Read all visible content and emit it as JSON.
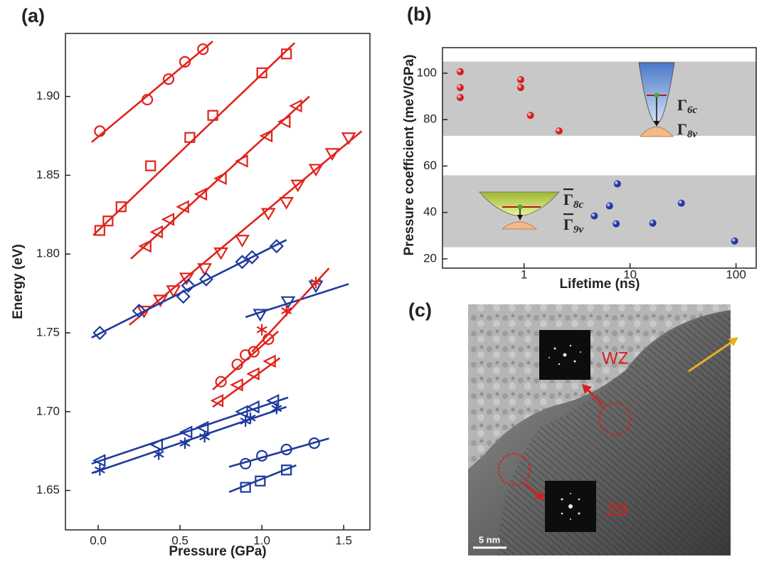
{
  "chart_data": [
    {
      "type": "scatter",
      "title": "(a)",
      "xlabel": "Pressure (GPa)",
      "ylabel": "Energy (eV)",
      "xlim": [
        -0.2,
        1.66
      ],
      "ylim": [
        1.625,
        1.94
      ],
      "xticks": [
        {
          "value": 0,
          "label": "0.0"
        },
        {
          "value": 0.5,
          "label": "0.5"
        },
        {
          "value": 1,
          "label": "1.0"
        },
        {
          "value": 1.5,
          "label": "1.5"
        }
      ],
      "yticks": [
        1.65,
        {
          "value": 1.7,
          "label": "1.70"
        },
        1.75,
        {
          "value": 1.8,
          "label": "1.80"
        },
        1.85,
        {
          "value": 1.9,
          "label": "1.90"
        }
      ],
      "series": [
        {
          "marker": "circle",
          "color": "#e0231c",
          "x": [
            0.01,
            0.3,
            0.43,
            0.53,
            0.64
          ],
          "values": [
            1.878,
            1.898,
            1.911,
            1.922,
            1.93
          ],
          "fit": {
            "x": [
              -0.04,
              0.7
            ],
            "values": [
              1.871,
              1.935
            ]
          }
        },
        {
          "marker": "square",
          "color": "#e0231c",
          "x": [
            0.01,
            0.06,
            0.14,
            0.32,
            0.56,
            0.7,
            1.0,
            1.15
          ],
          "values": [
            1.815,
            1.821,
            1.83,
            1.856,
            1.874,
            1.888,
            1.915,
            1.927
          ],
          "fit": {
            "x": [
              -0.03,
              1.2
            ],
            "values": [
              1.812,
              1.934
            ]
          }
        },
        {
          "marker": "triangle-left",
          "color": "#e0231c",
          "x": [
            0.29,
            0.36,
            0.43,
            0.52,
            0.63,
            0.75,
            0.88,
            1.03,
            1.14,
            1.21
          ],
          "values": [
            1.805,
            1.814,
            1.822,
            1.83,
            1.838,
            1.848,
            1.859,
            1.875,
            1.884,
            1.894
          ],
          "fit": {
            "x": [
              0.2,
              1.29
            ],
            "values": [
              1.797,
              1.9
            ]
          }
        },
        {
          "marker": "triangle-down",
          "color": "#e0231c",
          "x": [
            0.28,
            0.38,
            0.46,
            0.54,
            0.65,
            0.75,
            0.88,
            1.04,
            1.15,
            1.22,
            1.33,
            1.43,
            1.53
          ],
          "values": [
            1.764,
            1.771,
            1.777,
            1.785,
            1.791,
            1.801,
            1.809,
            1.826,
            1.833,
            1.844,
            1.854,
            1.864,
            1.874
          ],
          "fit": {
            "x": [
              0.19,
              1.61
            ],
            "values": [
              1.755,
              1.878
            ]
          }
        },
        {
          "marker": "diamond",
          "color": "#1f3a9e",
          "x": [
            0.01,
            0.25,
            0.52,
            0.55,
            0.66,
            0.88,
            0.94,
            1.09
          ],
          "values": [
            1.75,
            1.764,
            1.773,
            1.78,
            1.784,
            1.795,
            1.798,
            1.805
          ],
          "fit": {
            "x": [
              -0.04,
              1.15
            ],
            "values": [
              1.747,
              1.809
            ]
          }
        },
        {
          "marker": "triangle-down",
          "color": "#1f3a9e",
          "x": [
            0.99,
            1.16,
            1.33
          ],
          "values": [
            1.762,
            1.77,
            1.78
          ],
          "fit": {
            "x": [
              0.9,
              1.53
            ],
            "values": [
              1.76,
              1.781
            ]
          }
        },
        {
          "marker": "star",
          "color": "#e0231c",
          "x": [
            1.0,
            1.15,
            1.33
          ],
          "values": [
            1.752,
            1.764,
            1.782
          ],
          "fit": {
            "x": [
              0.94,
              1.41
            ],
            "values": [
              1.738,
              1.791
            ]
          }
        },
        {
          "marker": "circle",
          "color": "#e0231c",
          "x": [
            0.75,
            0.85,
            0.9,
            0.95,
            1.04
          ],
          "values": [
            1.719,
            1.73,
            1.736,
            1.738,
            1.746
          ],
          "fit": {
            "x": [
              0.7,
              1.1
            ],
            "values": [
              1.714,
              1.751
            ]
          }
        },
        {
          "marker": "triangle-left",
          "color": "#e0231c",
          "x": [
            0.73,
            0.85,
            0.95,
            1.05
          ],
          "values": [
            1.707,
            1.717,
            1.724,
            1.732
          ],
          "fit": {
            "x": [
              0.7,
              1.11
            ],
            "values": [
              1.703,
              1.734
            ]
          }
        },
        {
          "marker": "triangle-left",
          "color": "#1f3a9e",
          "x": [
            0.01,
            0.36,
            0.54,
            0.64,
            0.88,
            0.95,
            1.07
          ],
          "values": [
            1.669,
            1.679,
            1.687,
            1.69,
            1.7,
            1.703,
            1.707
          ],
          "fit": {
            "x": [
              -0.04,
              1.16
            ],
            "values": [
              1.667,
              1.709
            ]
          }
        },
        {
          "marker": "star",
          "color": "#1f3a9e",
          "x": [
            0.01,
            0.37,
            0.53,
            0.65,
            0.9,
            0.93,
            1.09
          ],
          "values": [
            1.663,
            1.673,
            1.68,
            1.684,
            1.694,
            1.696,
            1.702
          ],
          "fit": {
            "x": [
              -0.04,
              1.15
            ],
            "values": [
              1.661,
              1.703
            ]
          }
        },
        {
          "marker": "circle",
          "color": "#1f3a9e",
          "x": [
            0.9,
            1.0,
            1.15,
            1.32
          ],
          "values": [
            1.667,
            1.672,
            1.676,
            1.68
          ],
          "fit": {
            "x": [
              0.8,
              1.41
            ],
            "values": [
              1.665,
              1.683
            ]
          }
        },
        {
          "marker": "square",
          "color": "#1f3a9e",
          "x": [
            0.9,
            0.99,
            1.15
          ],
          "values": [
            1.652,
            1.656,
            1.663
          ],
          "fit": {
            "x": [
              0.8,
              1.21
            ],
            "values": [
              1.649,
              1.666
            ]
          }
        }
      ]
    },
    {
      "type": "scatter",
      "title": "(b)",
      "xlabel": "Lifetime (ns)",
      "ylabel": "Pressure coefficient (meV/GPa)",
      "xscale": "log",
      "xlim": [
        0.17,
        155
      ],
      "ylim": [
        16,
        111
      ],
      "xticks": [
        1,
        10,
        100
      ],
      "yticks": [
        20,
        40,
        60,
        80,
        100
      ],
      "band_color": "#c8c8c8",
      "bands": [
        {
          "from": 73,
          "to": 105
        },
        {
          "from": 25,
          "to": 56
        }
      ],
      "series": [
        {
          "marker": "sphere",
          "color": "#d42020",
          "x": [
            0.25,
            0.25,
            0.25,
            0.93,
            0.93,
            1.15,
            2.14
          ],
          "values": [
            100.6,
            93.8,
            89.5,
            97.2,
            93.8,
            81.8,
            75.1
          ]
        },
        {
          "marker": "sphere",
          "color": "#2434a8",
          "x": [
            4.6,
            6.4,
            7.4,
            7.6,
            16.4,
            30.5,
            97
          ],
          "values": [
            38.5,
            42.8,
            35.1,
            52.3,
            35.4,
            44.0,
            27.7
          ]
        }
      ],
      "annotations": [
        {
          "text": "Γ",
          "sub": "6c",
          "overline": false
        },
        {
          "text": "Γ",
          "sub": "8v",
          "overline": false
        },
        {
          "text": "Γ",
          "sub": "8c",
          "overline": true
        },
        {
          "text": "Γ",
          "sub": "9v",
          "overline": true
        }
      ]
    }
  ],
  "image_panel": {
    "label": "(c)",
    "phases": [
      "WZ",
      "ZB"
    ],
    "scale_bar": "5 nm"
  }
}
